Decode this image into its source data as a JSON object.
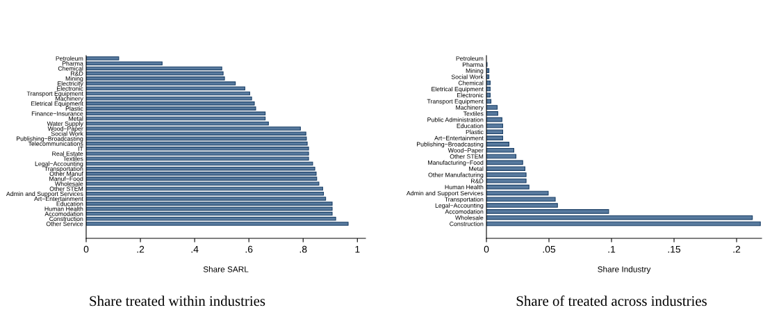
{
  "chart_data": [
    {
      "type": "bar",
      "orientation": "horizontal",
      "title": "Share treated within industries",
      "xlabel": "Share SARL",
      "color": "#587a9e",
      "categories": [
        "Petroleum",
        "Pharma",
        "Chemical",
        "R&D",
        "Mining",
        "Electricity",
        "Electronic",
        "Transport Equipment",
        "Machinery",
        "Eletrical Equipment",
        "Plastic",
        "Finance−Insurance",
        "Metal",
        "Water Supply",
        "Wood−Paper",
        "Social Work",
        "Publishing−Broadcasting",
        "Telecommunications",
        "IT",
        "Real Estate",
        "Textiles",
        "Legal−Accounting",
        "Transportation",
        "Other Manuf",
        "Manuf−Food",
        "Wholesale",
        "Other STEM",
        "Admin and Support Services",
        "Art−Entertainment",
        "Education",
        "Human Health",
        "Accomodation",
        "Construction",
        "Other Service"
      ],
      "values": [
        0.12,
        0.28,
        0.5,
        0.505,
        0.51,
        0.55,
        0.585,
        0.603,
        0.61,
        0.62,
        0.625,
        0.66,
        0.66,
        0.672,
        0.79,
        0.81,
        0.812,
        0.815,
        0.82,
        0.82,
        0.82,
        0.835,
        0.843,
        0.848,
        0.85,
        0.858,
        0.872,
        0.875,
        0.883,
        0.907,
        0.907,
        0.907,
        0.92,
        0.966
      ],
      "xlim": [
        0,
        1.03
      ],
      "xticks": [
        0,
        {
          "value": 0.2,
          "label": ".2"
        },
        {
          "value": 0.4,
          "label": ".4"
        },
        {
          "value": 0.6,
          "label": ".6"
        },
        {
          "value": 0.8,
          "label": ".8"
        },
        1
      ],
      "grid": false,
      "legend": false
    },
    {
      "type": "bar",
      "orientation": "horizontal",
      "title": "Share of treated across industries",
      "xlabel": "Share Industry",
      "color": "#587a9e",
      "categories": [
        "Petroleum",
        "Pharma",
        "Mining",
        "Social Work",
        "Chemical",
        "Eletrical Equipment",
        "Electronic",
        "Transport Equipment",
        "Machinery",
        "Textiles",
        "Public Administration",
        "Education",
        "Plastic",
        "Art−Entertainment",
        "Publishing−Broadcasting",
        "Wood−Paper",
        "Other STEM",
        "Manufacturing−Food",
        "Metal",
        "Other Manufacturing",
        "R&D",
        "Human Health",
        "Admin and Support Services",
        "Transportation",
        "Legal−Accounting",
        "Accomodation",
        "Wholesale",
        "Construction"
      ],
      "values": [
        null,
        0.0005,
        0.002,
        0.002,
        0.003,
        0.003,
        0.003,
        0.0036,
        0.0086,
        0.0091,
        0.0124,
        0.013,
        0.013,
        0.013,
        0.018,
        0.0219,
        0.0236,
        0.029,
        0.0308,
        0.0317,
        0.0317,
        0.034,
        0.0494,
        0.055,
        0.0568,
        0.0977,
        0.2126,
        0.219
      ],
      "xlim": [
        0,
        0.22
      ],
      "xticks": [
        0,
        {
          "value": 0.05,
          "label": ".05"
        },
        {
          "value": 0.1,
          "label": ".1"
        },
        {
          "value": 0.15,
          "label": ".15"
        },
        {
          "value": 0.2,
          "label": ".2"
        }
      ],
      "grid": false,
      "legend": false
    }
  ]
}
